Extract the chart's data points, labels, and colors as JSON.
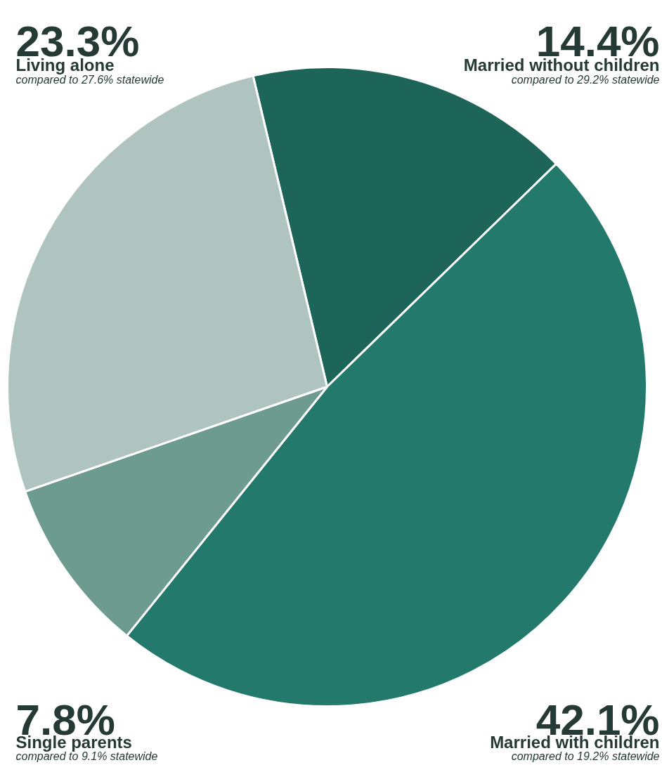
{
  "chart_data": {
    "type": "pie",
    "categories": [
      "Married without children",
      "Married with children",
      "Single parents",
      "Living alone"
    ],
    "values": [
      14.4,
      42.1,
      7.8,
      23.3
    ],
    "value_labels": [
      "14.4%",
      "42.1%",
      "7.8%",
      "23.3%"
    ],
    "colors": [
      "#1c6558",
      "#23796b",
      "#6e9b8f",
      "#afc4be"
    ],
    "annotations": [
      "compared to 29.2% statewide",
      "compared to 19.2% statewide",
      "compared to 9.1% statewide",
      "compared to 27.6% statewide"
    ]
  }
}
